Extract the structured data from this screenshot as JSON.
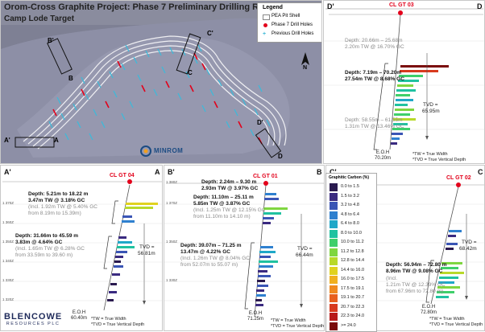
{
  "map": {
    "title": "Orom-Cross Graphite Project: Phase 7 Preliminary Drilling Results",
    "subtitle": "Camp Lode Target",
    "legend": {
      "title": "Legend",
      "items": [
        {
          "label": "PEA Pit Shell",
          "color": "#ffffff"
        },
        {
          "label": "Phase 7 Drill Holes",
          "color": "#e3001b"
        },
        {
          "label": "Previous Drill Holes",
          "color": "#3fb9d8"
        }
      ]
    },
    "section_markers": [
      "A",
      "A'",
      "B",
      "B'",
      "C",
      "C'",
      "D",
      "D'"
    ],
    "north_label": "N",
    "logo_text": "MINROM"
  },
  "sections": {
    "dd": {
      "start": "D'",
      "end": "D",
      "hole": "CL GT 03",
      "annotations": [
        {
          "text": "Depth: 20.66m – 25.68m",
          "bold": false
        },
        {
          "text": "2.20m TW @ 16.70% GC",
          "bold": false
        },
        {
          "text": "Depth: 7.19m – 70.20m",
          "bold": true
        },
        {
          "text": "27.54m TW @ 8.68% GC",
          "bold": true
        },
        {
          "text": "Depth: 58.55m – 61.55m",
          "bold": false
        },
        {
          "text": "1.31m TW @ 13.46% GC",
          "bold": false
        }
      ],
      "tvd": [
        "TVD =",
        "65.95m"
      ],
      "eoh": [
        "E.O.H",
        "70.20m"
      ],
      "notes": [
        "*TW = True Width",
        "*TVD = True Vertical Depth"
      ]
    },
    "aa": {
      "start": "A'",
      "end": "A",
      "hole": "CL GT 04",
      "annotations": [
        {
          "text": "Depth: 5.21m to 18.22 m",
          "bold": true
        },
        {
          "text": "3.47m TW @ 3.18% GC",
          "bold": true
        },
        {
          "text": "(Incl. 1.92m TW @ 5.40% GC",
          "bold": false
        },
        {
          "text": "from 8.19m to 15.39m)",
          "bold": false
        },
        {
          "text": "Depth: 31.66m to 45.59 m",
          "bold": true
        },
        {
          "text": "3.83m @ 4.64% GC",
          "bold": true
        },
        {
          "text": "(Incl. 1.65m TW @ 6.28% GC",
          "bold": false
        },
        {
          "text": "from 33.59m to 39.60 m)",
          "bold": false
        }
      ],
      "tvd": [
        "TVD =",
        "56.81m"
      ],
      "eoh": [
        "E.O.H",
        "60.40m"
      ],
      "notes": [
        "*TW = True Width",
        "*TVD = True Vertical Depth"
      ]
    },
    "bb": {
      "start": "B'",
      "end": "B",
      "hole": "CL GT 01",
      "annotations": [
        {
          "text": "Depth: 2.24m – 9.30 m",
          "bold": true
        },
        {
          "text": "2.93m TW @ 3.97% GC",
          "bold": true
        },
        {
          "text": "Depth: 11.10m – 25.11 m",
          "bold": true
        },
        {
          "text": "5.85m TW @ 3.87% GC",
          "bold": true
        },
        {
          "text": "(Incl. 1.25m TW @ 12.15% GC",
          "bold": false
        },
        {
          "text": "from 11.10m to 14.10 m)",
          "bold": false
        },
        {
          "text": "Depth: 39.07m – 71.25 m",
          "bold": true
        },
        {
          "text": "13.47m @ 4.22% GC",
          "bold": true
        },
        {
          "text": "(Incl. 1.26m TW @ 8.04% GC",
          "bold": false
        },
        {
          "text": "from 52.07m to 55.07 m)",
          "bold": false
        }
      ],
      "tvd": [
        "TVD =",
        "66.44m"
      ],
      "eoh": [
        "E.O.H",
        "71.25m"
      ],
      "notes": [
        "*TW = True Width",
        "*TVD = True Vertical Depth"
      ]
    },
    "cc": {
      "start": "C'",
      "end": "C",
      "hole": "CL GT 02",
      "annotations": [
        {
          "text": "Depth: 56.94m – 72.80 m",
          "bold": true
        },
        {
          "text": "8.96m TW @ 9.08% GC",
          "bold": true
        },
        {
          "text": "(Incl.",
          "bold": false
        },
        {
          "text": "1.21m TW @ 12.39% GC",
          "bold": false
        },
        {
          "text": "from 67.96m to 72.80 m)",
          "bold": false
        }
      ],
      "tvd": [
        "TVD =",
        "68.42m"
      ],
      "eoh": [
        "E.O.H",
        "72.80m"
      ],
      "notes": [
        "*TW = True Width",
        "*TVD = True Vertical Depth"
      ]
    }
  },
  "gc_legend": {
    "title": "Graphitic Carbon (%)",
    "items": [
      {
        "label": "0.0 to 1.5",
        "color": "#2a1a4f"
      },
      {
        "label": "1.5 to 3.2",
        "color": "#3a2a80"
      },
      {
        "label": "3.2 to 4.8",
        "color": "#3a55b5"
      },
      {
        "label": "4.8 to 6.4",
        "color": "#2f80cf"
      },
      {
        "label": "6.4 to 8.0",
        "color": "#1fa8c8"
      },
      {
        "label": "8.0 to 10.0",
        "color": "#20c2a0"
      },
      {
        "label": "10.0 to 11.2",
        "color": "#3fcf6a"
      },
      {
        "label": "11.2 to 12.8",
        "color": "#7fd640"
      },
      {
        "label": "12.8 to 14.4",
        "color": "#b8d92a"
      },
      {
        "label": "14.4 to 16.0",
        "color": "#e0d21f"
      },
      {
        "label": "16.0 to 17.5",
        "color": "#f0b020"
      },
      {
        "label": "17.5 to 19.1",
        "color": "#f08a20"
      },
      {
        "label": "19.1 to 20.7",
        "color": "#e8601e"
      },
      {
        "label": "20.7 to 22.3",
        "color": "#d83a1e"
      },
      {
        "label": "22.3 to 24.0",
        "color": "#b81a1a"
      },
      {
        "label": ">= 24.0",
        "color": "#7a0a0a"
      }
    ]
  },
  "company": {
    "name": "BLENCOWE",
    "sub": "RESOURCES PLC"
  }
}
